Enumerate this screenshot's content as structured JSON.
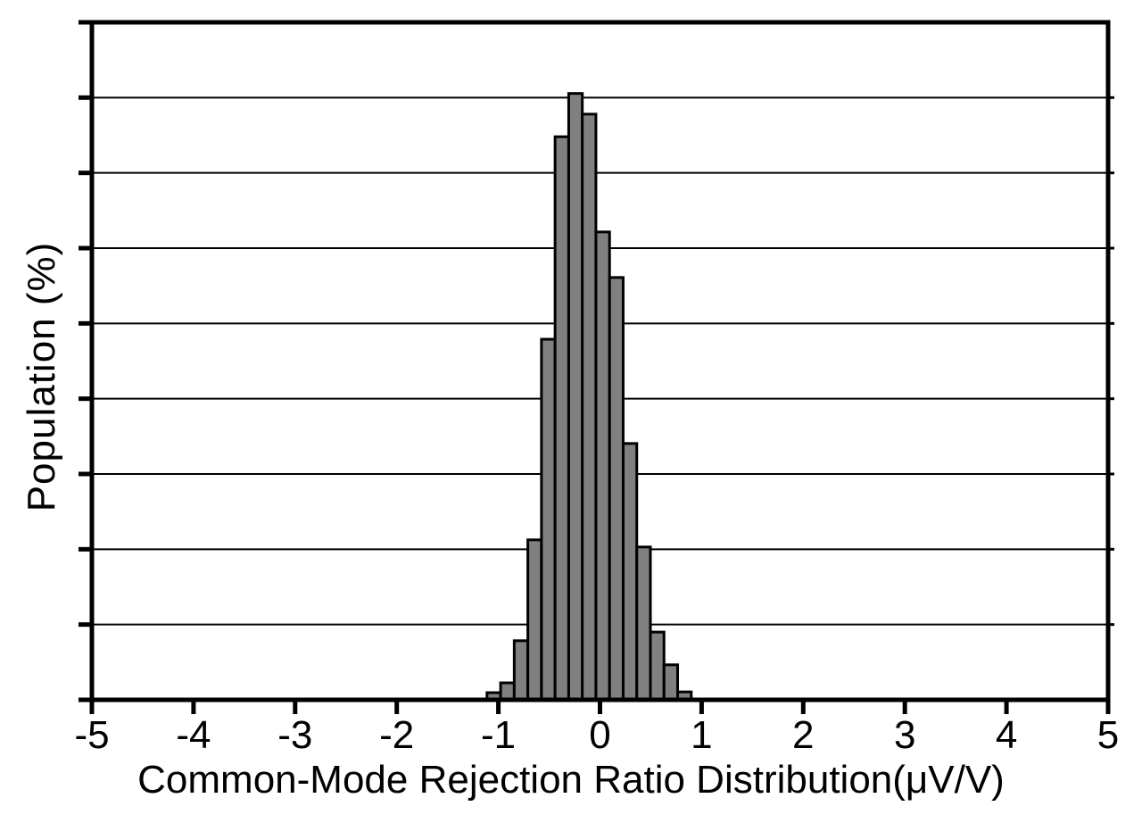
{
  "chart_data": {
    "type": "bar",
    "subtype": "histogram",
    "title": "",
    "xlabel": "Common-Mode Rejection Ratio Distribution(μV/V)",
    "ylabel": "Population (%)",
    "x_tick_labels": [
      "-5",
      "-4",
      "-3",
      "-2",
      "-1",
      "0",
      "1",
      "2",
      "3",
      "4",
      "5"
    ],
    "xlim": [
      -5,
      5
    ],
    "ylim": [
      0,
      18
    ],
    "y_grid_step": 2,
    "y_tick_step": 2,
    "y_tick_labels_visible": false,
    "grid": "horizontal-only",
    "legend": "none",
    "bin_width": 0.134,
    "bin_centers": [
      -1.045,
      -0.911,
      -0.777,
      -0.643,
      -0.509,
      -0.375,
      -0.241,
      -0.107,
      0.027,
      0.161,
      0.295,
      0.429,
      0.563,
      0.697,
      0.831
    ],
    "values_percent": [
      0.19,
      0.45,
      1.57,
      4.25,
      9.58,
      14.96,
      16.11,
      15.56,
      12.43,
      11.22,
      6.81,
      4.06,
      1.8,
      0.93,
      0.21
    ],
    "colors": {
      "background": "#ffffff",
      "bar_fill": "#808080",
      "bar_stroke": "#000000",
      "grid_line": "#000000",
      "frame": "#000000",
      "text": "#000000"
    }
  }
}
